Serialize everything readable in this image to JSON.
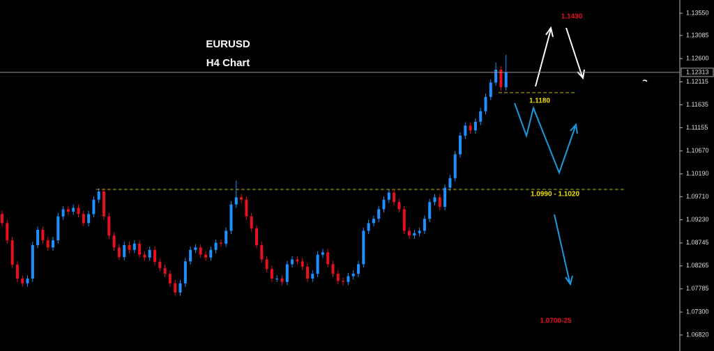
{
  "chart_data": {
    "type": "candlestick",
    "title": "EURUSD",
    "subtitle": "H4 Chart",
    "annotations": [
      "1.1430",
      "1.1180",
      "1.0990 - 1.1020",
      "1.0700-25"
    ],
    "last_price": 1.12313,
    "up_color": "#1e90ff",
    "down_color": "#e8101e",
    "ylim": [
      1.0682,
      1.1355
    ],
    "yticks": [
      {
        "value": 1.1355,
        "label": "1.13550"
      },
      {
        "value": 1.13085,
        "label": "1.13085"
      },
      {
        "value": 1.126,
        "label": "1.12600"
      },
      {
        "value": 1.12115,
        "label": "1.12115"
      },
      {
        "value": 1.11635,
        "label": "1.11635"
      },
      {
        "value": 1.11155,
        "label": "1.11155"
      },
      {
        "value": 1.1067,
        "label": "1.10670"
      },
      {
        "value": 1.1019,
        "label": "1.10190"
      },
      {
        "value": 1.0971,
        "label": "1.09710"
      },
      {
        "value": 1.0923,
        "label": "1.09230"
      },
      {
        "value": 1.08745,
        "label": "1.08745"
      },
      {
        "value": 1.08265,
        "label": "1.08265"
      },
      {
        "value": 1.07785,
        "label": "1.07785"
      },
      {
        "value": 1.073,
        "label": "1.07300"
      },
      {
        "value": 1.0682,
        "label": "1.06820"
      }
    ],
    "open": [
      1.0935,
      1.0916,
      1.088,
      1.0829,
      1.08,
      1.079,
      1.08,
      1.087,
      1.0902,
      1.088,
      1.0865,
      1.088,
      1.093,
      1.0945,
      1.094,
      1.0948,
      1.0935,
      1.0916,
      1.0935,
      1.0965,
      1.0982,
      1.093,
      1.089,
      1.0865,
      1.0845,
      1.087,
      1.086,
      1.0873,
      1.085,
      1.0844,
      1.086,
      1.0835,
      1.0822,
      1.081,
      1.079,
      1.0771,
      1.079,
      1.0836,
      1.086,
      1.0865,
      1.085,
      1.0844,
      1.086,
      1.0875,
      1.0873,
      1.09,
      1.0955,
      1.097,
      1.0965,
      1.093,
      1.0905,
      1.087,
      1.084,
      1.082,
      1.08,
      1.08,
      1.0793,
      1.083,
      1.084,
      1.0836,
      1.0825,
      1.08,
      1.081,
      1.085,
      1.0855,
      1.083,
      1.081,
      1.0795,
      1.0793,
      1.0805,
      1.081,
      1.083,
      1.09,
      1.0916,
      1.0925,
      1.0945,
      1.0965,
      1.098,
      1.096,
      1.0945,
      1.09,
      1.089,
      1.0895,
      1.09,
      1.0925,
      1.096,
      1.097,
      1.095,
      1.099,
      1.101,
      1.106,
      1.1099,
      1.112,
      1.111,
      1.1128,
      1.115,
      1.118,
      1.121,
      1.1237,
      1.12
    ],
    "high": [
      1.0942,
      1.0923,
      1.0887,
      1.0836,
      1.0807,
      1.0807,
      1.0877,
      1.0909,
      1.0909,
      1.0887,
      1.0887,
      1.0937,
      1.0952,
      1.0952,
      1.0955,
      1.0955,
      1.0942,
      1.0942,
      1.0972,
      1.0989,
      1.0989,
      1.0937,
      1.0897,
      1.0872,
      1.0877,
      1.0877,
      1.088,
      1.088,
      1.0857,
      1.0867,
      1.0867,
      1.0842,
      1.0829,
      1.0817,
      1.0797,
      1.0797,
      1.0843,
      1.0867,
      1.0872,
      1.0872,
      1.0857,
      1.0867,
      1.0882,
      1.0882,
      1.0907,
      1.0962,
      1.1005,
      1.0977,
      1.0972,
      1.0937,
      1.0912,
      1.0877,
      1.0847,
      1.0827,
      1.0807,
      1.0807,
      1.0837,
      1.0847,
      1.0847,
      1.0843,
      1.0832,
      1.0817,
      1.0857,
      1.0862,
      1.0862,
      1.0837,
      1.0817,
      1.0802,
      1.0812,
      1.0817,
      1.0837,
      1.0907,
      1.0923,
      1.0932,
      1.0952,
      1.0972,
      1.0987,
      1.0987,
      1.0967,
      1.0952,
      1.0907,
      1.0902,
      1.0907,
      1.0932,
      1.0967,
      1.0977,
      1.0977,
      1.0997,
      1.1017,
      1.1067,
      1.1106,
      1.1127,
      1.1127,
      1.1135,
      1.1157,
      1.1187,
      1.1217,
      1.1252,
      1.1244,
      1.1268
    ],
    "low": [
      1.0909,
      1.0873,
      1.0822,
      1.0793,
      1.0783,
      1.0783,
      1.0793,
      1.0863,
      1.0873,
      1.0858,
      1.0858,
      1.0873,
      1.0923,
      1.0933,
      1.0933,
      1.0928,
      1.0909,
      1.0909,
      1.0928,
      1.0958,
      1.0923,
      1.0883,
      1.0858,
      1.0838,
      1.0838,
      1.0853,
      1.0853,
      1.0843,
      1.0837,
      1.0837,
      1.0828,
      1.0815,
      1.0803,
      1.0783,
      1.0764,
      1.0764,
      1.0783,
      1.0829,
      1.0853,
      1.0843,
      1.0837,
      1.0837,
      1.0853,
      1.0866,
      1.0866,
      1.0893,
      1.0948,
      1.0958,
      1.0923,
      1.0898,
      1.0863,
      1.0833,
      1.0813,
      1.0793,
      1.0793,
      1.0786,
      1.0786,
      1.0823,
      1.0829,
      1.0818,
      1.0793,
      1.0793,
      1.0803,
      1.0843,
      1.0823,
      1.0803,
      1.0788,
      1.0786,
      1.0786,
      1.0798,
      1.0803,
      1.0823,
      1.0893,
      1.0909,
      1.0918,
      1.0938,
      1.0958,
      1.0953,
      1.0938,
      1.0893,
      1.0883,
      1.0883,
      1.0888,
      1.0893,
      1.0918,
      1.0953,
      1.0943,
      1.0943,
      1.0983,
      1.1003,
      1.1053,
      1.1092,
      1.1103,
      1.1103,
      1.1121,
      1.1143,
      1.1173,
      1.1203,
      1.1193,
      1.1193
    ],
    "close": [
      1.0916,
      1.088,
      1.0829,
      1.08,
      1.079,
      1.08,
      1.087,
      1.0902,
      1.088,
      1.0865,
      1.088,
      1.093,
      1.0945,
      1.094,
      1.0948,
      1.0935,
      1.0916,
      1.0935,
      1.0965,
      1.0982,
      1.093,
      1.089,
      1.0865,
      1.0845,
      1.087,
      1.086,
      1.0873,
      1.085,
      1.0844,
      1.086,
      1.0835,
      1.0822,
      1.081,
      1.079,
      1.0771,
      1.079,
      1.0836,
      1.086,
      1.0865,
      1.085,
      1.0844,
      1.086,
      1.0875,
      1.0873,
      1.09,
      1.0955,
      1.097,
      1.0965,
      1.093,
      1.0905,
      1.087,
      1.084,
      1.082,
      1.08,
      1.08,
      1.0793,
      1.083,
      1.084,
      1.0836,
      1.0825,
      1.08,
      1.081,
      1.085,
      1.0855,
      1.083,
      1.081,
      1.0795,
      1.0793,
      1.0805,
      1.081,
      1.083,
      1.09,
      1.0916,
      1.0925,
      1.0945,
      1.0965,
      1.098,
      1.096,
      1.0945,
      1.09,
      1.089,
      1.0895,
      1.09,
      1.0925,
      1.096,
      1.097,
      1.095,
      1.099,
      1.101,
      1.106,
      1.1099,
      1.112,
      1.111,
      1.1128,
      1.115,
      1.118,
      1.121,
      1.1237,
      1.12,
      1.1231
    ]
  }
}
